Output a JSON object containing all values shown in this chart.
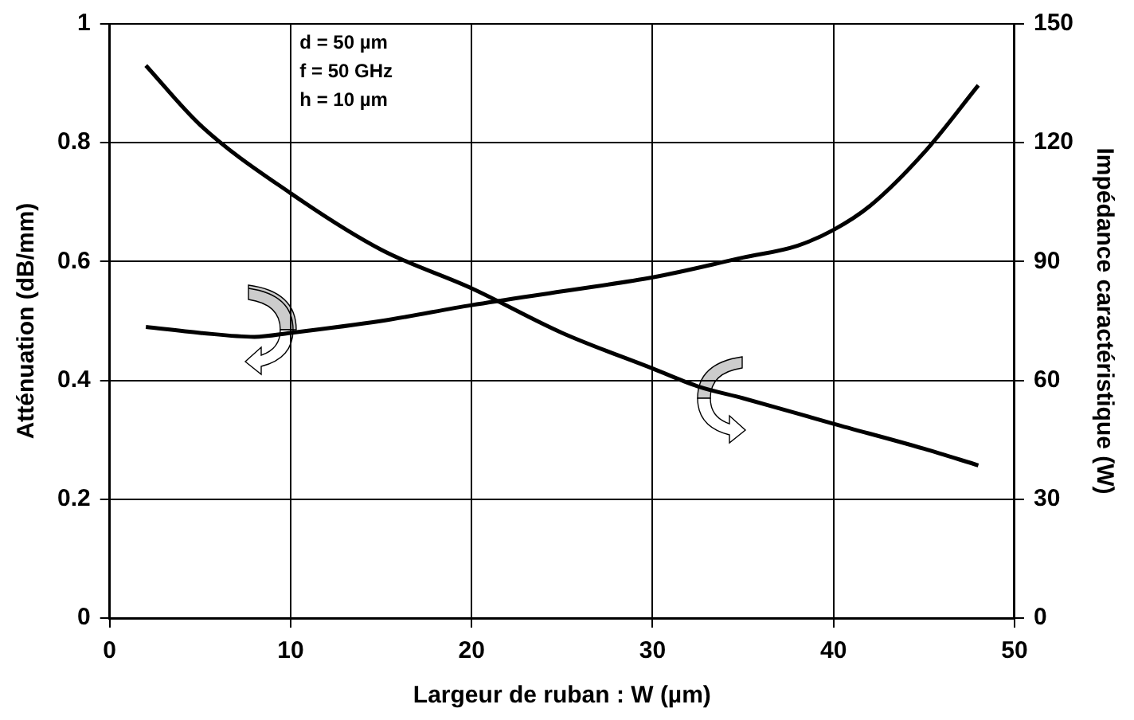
{
  "chart_data": {
    "type": "line",
    "xlabel": "Largeur de ruban : W (µm)",
    "ylabel": "Atténuation (dB/mm)",
    "y2label": "Impédance caractéristique (W)",
    "annotations": [
      "d = 50 µm",
      "f = 50 GHz",
      "h = 10 µm"
    ],
    "x": [
      2,
      5,
      8,
      10,
      15,
      20,
      25,
      30,
      35,
      38,
      40,
      42,
      45,
      48
    ],
    "series": [
      {
        "color": "#000000",
        "x": [
          2,
          5,
          10,
          15,
          20,
          25,
          30,
          32.5,
          35,
          40,
          45,
          48
        ],
        "values": [
          0.93,
          0.83,
          0.715,
          0.62,
          0.555,
          0.48,
          0.42,
          0.39,
          0.37,
          0.327,
          0.285,
          0.257
        ]
      },
      {
        "color": "#000000",
        "axis": "y2",
        "values": [
          73.5,
          72,
          71,
          72,
          75,
          79,
          82.5,
          86,
          91,
          94,
          98,
          104,
          117.5,
          134.5
        ]
      }
    ],
    "xlim": [
      0,
      50
    ],
    "xticks": [
      0,
      10,
      20,
      30,
      40,
      50
    ],
    "ylim": [
      0,
      1
    ],
    "yticks": [
      0,
      0.2,
      0.4,
      0.6,
      0.8,
      1
    ],
    "y2lim": [
      0,
      150
    ],
    "y2ticks": [
      0,
      30,
      60,
      90,
      120,
      150
    ],
    "grid": true,
    "legend": false,
    "marker": "none",
    "line_style": "solid"
  }
}
